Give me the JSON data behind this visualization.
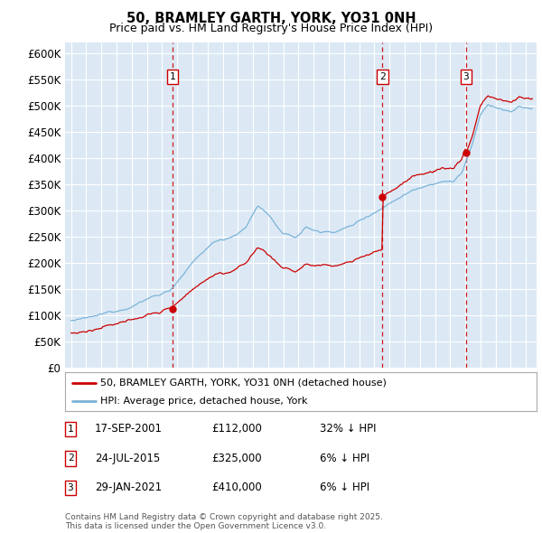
{
  "title": "50, BRAMLEY GARTH, YORK, YO31 0NH",
  "subtitle": "Price paid vs. HM Land Registry's House Price Index (HPI)",
  "sale_info": [
    {
      "label": "1",
      "date": "17-SEP-2001",
      "price": "£112,000",
      "hpi": "32% ↓ HPI"
    },
    {
      "label": "2",
      "date": "24-JUL-2015",
      "price": "£325,000",
      "hpi": "6% ↓ HPI"
    },
    {
      "label": "3",
      "date": "29-JAN-2021",
      "price": "£410,000",
      "hpi": "6% ↓ HPI"
    }
  ],
  "legend_label_red": "50, BRAMLEY GARTH, YORK, YO31 0NH (detached house)",
  "legend_label_blue": "HPI: Average price, detached house, York",
  "footer_line1": "Contains HM Land Registry data © Crown copyright and database right 2025.",
  "footer_line2": "This data is licensed under the Open Government Licence v3.0.",
  "fig_bg_color": "#f0f0f0",
  "plot_bg_color": "#dce9f5",
  "hpi_line_color": "#7ab3d9",
  "sale_line_color": "#cc0000",
  "vline_color": "#cc0000",
  "grid_color": "#ffffff",
  "ylim": [
    0,
    620000
  ],
  "ytick_values": [
    0,
    50000,
    100000,
    150000,
    200000,
    250000,
    300000,
    350000,
    400000,
    450000,
    500000,
    550000,
    600000
  ],
  "ytick_labels": [
    "£0",
    "£50K",
    "£100K",
    "£150K",
    "£200K",
    "£250K",
    "£300K",
    "£350K",
    "£400K",
    "£450K",
    "£500K",
    "£550K",
    "£600K"
  ]
}
